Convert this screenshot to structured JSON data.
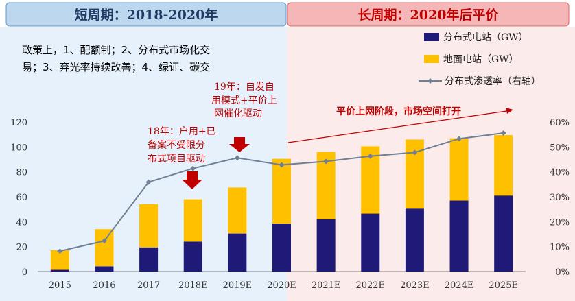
{
  "headers": {
    "short_period": "短周期：2018-2020年",
    "long_period": "长周期：2020年后平价"
  },
  "policy_note": {
    "line1": "政策上，1、配额制；2、分布式市场化交",
    "line2": "易；3、弃光率持续改善；4、绿证、碳交"
  },
  "annotations": {
    "a2019": [
      "19年：自发自",
      "用模式+平价上",
      "网催化驱动"
    ],
    "a2018": [
      "18年：户用+已",
      "备案不受限分",
      "布式项目驱动"
    ],
    "parity": "平价上网阶段，市场空间打开"
  },
  "colors": {
    "distributed": "#1f1a78",
    "ground": "#ffc000",
    "penetration": "#6f7f95",
    "short_bg": "#e6f1fb",
    "long_bg": "#fcebeb",
    "red": "#c00000"
  },
  "chart_data": {
    "type": "bar",
    "stacked": true,
    "categories": [
      "2015",
      "2016",
      "2017",
      "2018E",
      "2019E",
      "2020E",
      "2021E",
      "2022E",
      "2023E",
      "2024E",
      "2025E"
    ],
    "series": [
      {
        "name": "分布式电站（GW）",
        "type": "bar",
        "values": [
          1.4,
          4.2,
          19.4,
          24.0,
          30.5,
          38.5,
          42.0,
          46.5,
          50.5,
          57.0,
          61.0
        ]
      },
      {
        "name": "地面电站（GW）",
        "type": "bar",
        "values": [
          15.7,
          29.8,
          34.6,
          34.0,
          37.0,
          52.0,
          54.0,
          54.0,
          55.5,
          50.0,
          48.5
        ]
      },
      {
        "name": "分布式渗透率（右轴）",
        "type": "line",
        "axis": "right",
        "values": [
          8.2,
          12.3,
          35.9,
          41.4,
          45.6,
          42.8,
          44.2,
          46.3,
          47.8,
          53.3,
          55.6
        ]
      }
    ],
    "y_left": {
      "min": 0,
      "max": 120,
      "ticks": [
        "0",
        "20",
        "40",
        "60",
        "80",
        "100",
        "120"
      ]
    },
    "y_right": {
      "min": 0,
      "max": 60,
      "ticks": [
        "0%",
        "10%",
        "20%",
        "30%",
        "40%",
        "50%",
        "60%"
      ]
    },
    "legend": [
      "分布式电站（GW）",
      "地面电站（GW）",
      "分布式渗透率（右轴）"
    ],
    "legend_position": "top-right",
    "grid": false
  }
}
